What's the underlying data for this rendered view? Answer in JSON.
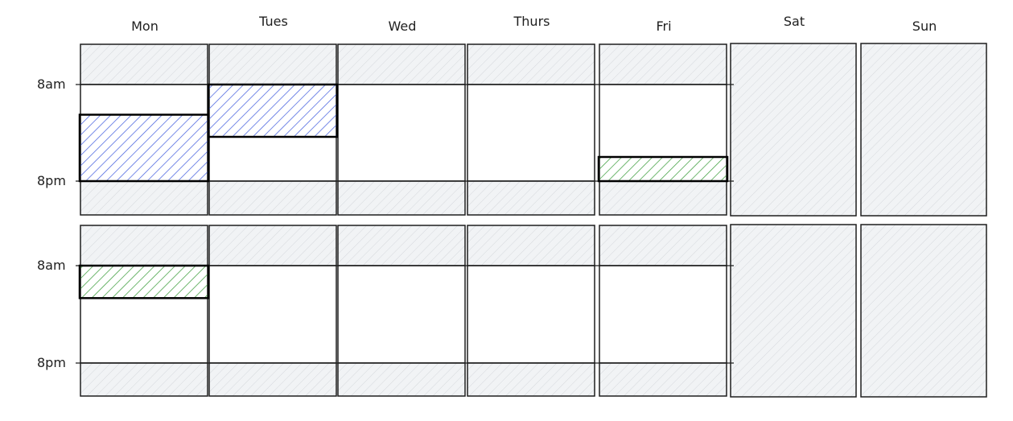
{
  "days": [
    "Mon",
    "Tues",
    "Wed",
    "Thurs",
    "Fri",
    "Sat",
    "Sun"
  ],
  "time_labels": {
    "start": "8am",
    "end": "8pm"
  },
  "weeks": 2,
  "weekend_days": [
    "Sat",
    "Sun"
  ],
  "colors": {
    "stroke": "#1e1e1e",
    "off_hours": "#e9ecef",
    "blue": "#4a64e0",
    "green": "#40a040"
  },
  "blocks": [
    {
      "week": 1,
      "day": "Mon",
      "start_hour": 11.75,
      "end_hour": 20,
      "color": "blue"
    },
    {
      "week": 1,
      "day": "Tues",
      "start_hour": 8,
      "end_hour": 14.5,
      "color": "blue"
    },
    {
      "week": 1,
      "day": "Fri",
      "start_hour": 17,
      "end_hour": 20,
      "color": "green"
    },
    {
      "week": 2,
      "day": "Mon",
      "start_hour": 8,
      "end_hour": 12,
      "color": "green"
    }
  ]
}
